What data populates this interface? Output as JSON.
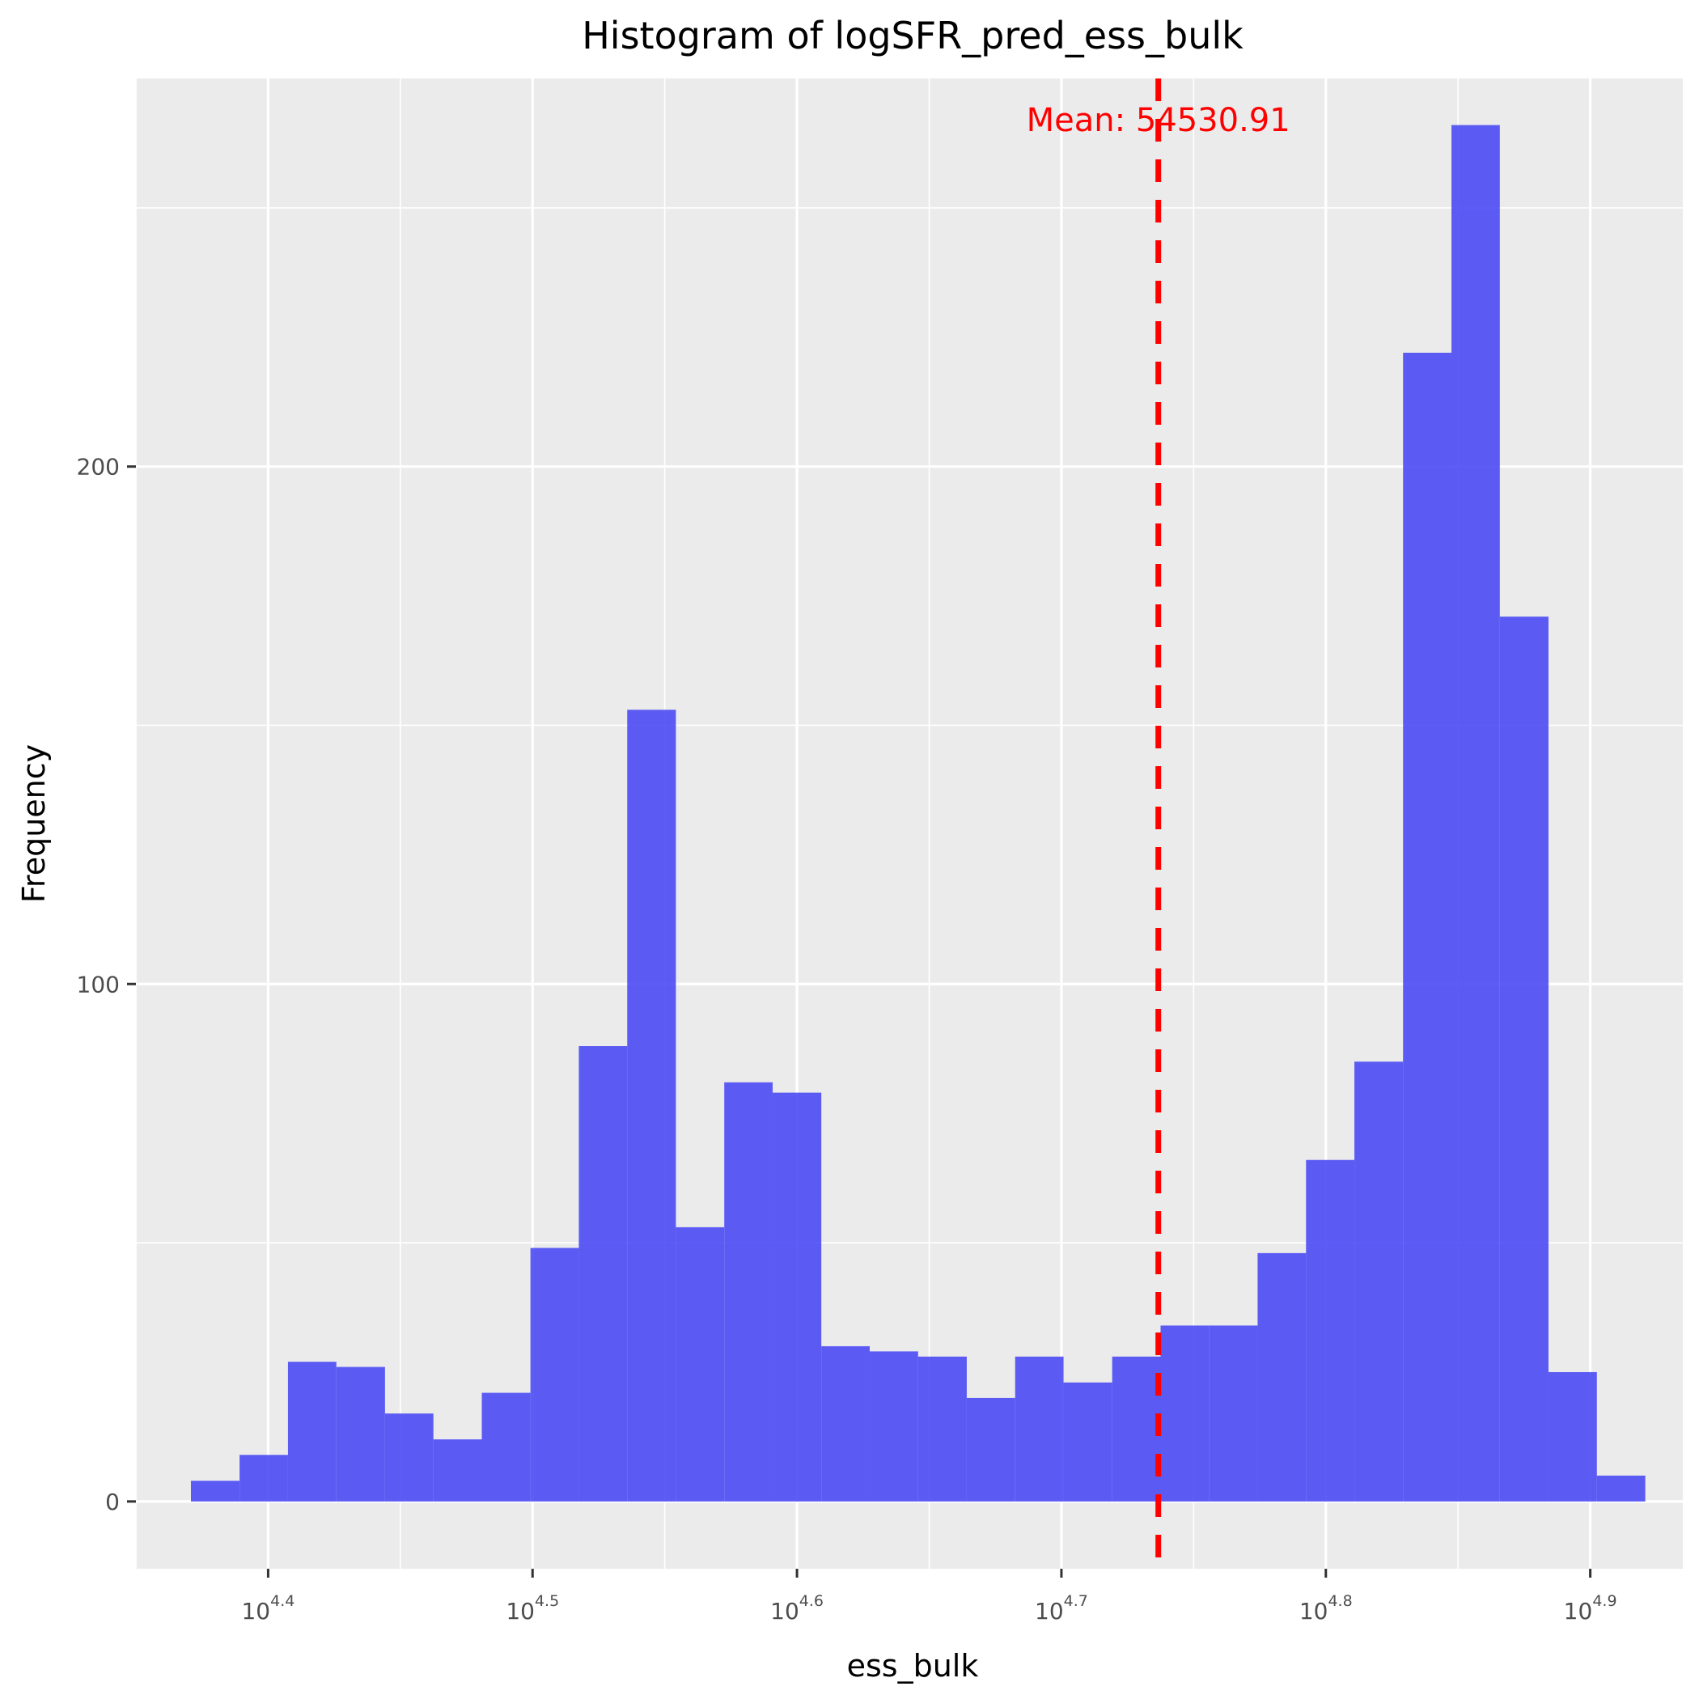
{
  "chart_data": {
    "type": "bar",
    "title": "Histogram of logSFR_pred_ess_bulk",
    "xlabel": "ess_bulk",
    "ylabel": "Frequency",
    "x_scale": "log10",
    "xlim": [
      4.35,
      4.935
    ],
    "ylim": [
      -13,
      275
    ],
    "x_ticks": [
      {
        "base": "10",
        "exp": "4.4",
        "value": 4.4
      },
      {
        "base": "10",
        "exp": "4.5",
        "value": 4.5
      },
      {
        "base": "10",
        "exp": "4.6",
        "value": 4.6
      },
      {
        "base": "10",
        "exp": "4.7",
        "value": 4.7
      },
      {
        "base": "10",
        "exp": "4.8",
        "value": 4.8
      },
      {
        "base": "10",
        "exp": "4.9",
        "value": 4.9
      }
    ],
    "y_ticks": [
      {
        "label": "0",
        "value": 0
      },
      {
        "label": "100",
        "value": 100
      },
      {
        "label": "200",
        "value": 200
      }
    ],
    "bin_edges_log10": [
      4.3708,
      4.3892,
      4.4075,
      4.4258,
      4.4442,
      4.4625,
      4.4808,
      4.4992,
      4.5175,
      4.5358,
      4.5542,
      4.5725,
      4.5908,
      4.6092,
      4.6275,
      4.6458,
      4.6642,
      4.6825,
      4.7008,
      4.7192,
      4.7375,
      4.7558,
      4.7742,
      4.7925,
      4.8108,
      4.8292,
      4.8475,
      4.8658,
      4.8842,
      4.9025,
      4.9208
    ],
    "counts": [
      4,
      9,
      27,
      26,
      17,
      12,
      21,
      49,
      88,
      153,
      53,
      81,
      79,
      30,
      29,
      28,
      20,
      28,
      23,
      28,
      34,
      34,
      48,
      66,
      85,
      222,
      266,
      171,
      25,
      5
    ],
    "bar_color": "#4b4bf5",
    "mean_line": {
      "value": 54530.91,
      "label": "Mean: 54530.91",
      "color": "#ff0000",
      "style": "dashed"
    },
    "grid": true,
    "legend": "none"
  }
}
